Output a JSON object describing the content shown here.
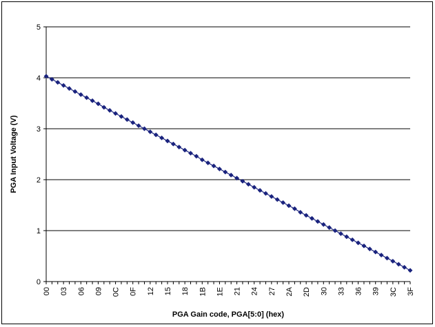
{
  "chart_data": {
    "type": "line",
    "title": "",
    "xlabel": "PGA Gain code, PGA[5:0] (hex)",
    "ylabel": "PGA Input Voltage (V)",
    "ylim": [
      0,
      5
    ],
    "yticks": [
      "0",
      "1",
      "2",
      "3",
      "4",
      "5"
    ],
    "xlim": [
      0,
      63
    ],
    "xtick_labels": [
      "00",
      "03",
      "06",
      "09",
      "0C",
      "0F",
      "12",
      "15",
      "18",
      "1B",
      "1E",
      "21",
      "24",
      "27",
      "2A",
      "2D",
      "30",
      "33",
      "36",
      "39",
      "3C",
      "3F"
    ],
    "grid": "horizontal",
    "legend": "none",
    "marker": "diamond",
    "series_color": "#1a237e",
    "series": [
      {
        "x": [
          0,
          1,
          2,
          3,
          4,
          5,
          6,
          7,
          8,
          9,
          10,
          11,
          12,
          13,
          14,
          15,
          16,
          17,
          18,
          19,
          20,
          21,
          22,
          23,
          24,
          25,
          26,
          27,
          28,
          29,
          30,
          31,
          32,
          33,
          34,
          35,
          36,
          37,
          38,
          39,
          40,
          41,
          42,
          43,
          44,
          45,
          46,
          47,
          48,
          49,
          50,
          51,
          52,
          53,
          54,
          55,
          56,
          57,
          58,
          59,
          60,
          61,
          62,
          63
        ],
        "values": [
          4.03,
          3.97,
          3.91,
          3.85,
          3.79,
          3.73,
          3.67,
          3.61,
          3.55,
          3.49,
          3.42,
          3.36,
          3.3,
          3.24,
          3.18,
          3.12,
          3.06,
          3.0,
          2.94,
          2.88,
          2.82,
          2.76,
          2.7,
          2.64,
          2.58,
          2.52,
          2.46,
          2.39,
          2.33,
          2.27,
          2.21,
          2.15,
          2.09,
          2.03,
          1.97,
          1.91,
          1.85,
          1.79,
          1.73,
          1.67,
          1.61,
          1.55,
          1.49,
          1.43,
          1.36,
          1.3,
          1.24,
          1.18,
          1.12,
          1.06,
          1.0,
          0.94,
          0.88,
          0.82,
          0.76,
          0.7,
          0.64,
          0.58,
          0.52,
          0.46,
          0.4,
          0.34,
          0.28,
          0.22
        ]
      }
    ]
  }
}
